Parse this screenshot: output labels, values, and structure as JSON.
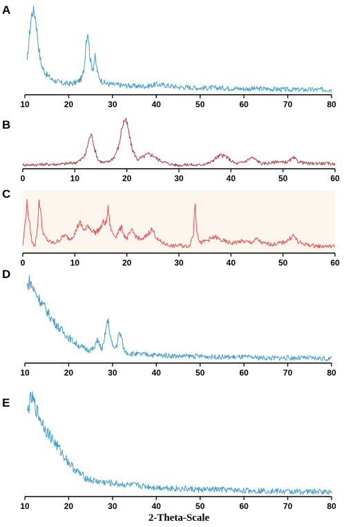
{
  "figure": {
    "xlabel": "2-Theta-Scale"
  },
  "chart_data": [
    {
      "panel": "A",
      "type": "line",
      "color": "#3a9bd0",
      "background": "#ffffff",
      "xlim": [
        10,
        80
      ],
      "xticks": [
        10,
        20,
        30,
        40,
        50,
        60,
        70,
        80
      ],
      "ylabel": "",
      "y_axis_visible": false,
      "series": [
        {
          "x": [
            10.5,
            11,
            11.5,
            12,
            12.5,
            13,
            13.5,
            14,
            15,
            16,
            17,
            18,
            19,
            20,
            21,
            22,
            23,
            23.5,
            24,
            24.4,
            24.8,
            25.2,
            25.6,
            26,
            26.4,
            26.8,
            27.5,
            28.5,
            30,
            32,
            35,
            38,
            40,
            42,
            45,
            50,
            55,
            60,
            65,
            70,
            75,
            80
          ],
          "y": [
            0.35,
            0.65,
            0.9,
            0.97,
            0.85,
            0.6,
            0.4,
            0.3,
            0.22,
            0.17,
            0.15,
            0.13,
            0.12,
            0.12,
            0.12,
            0.14,
            0.18,
            0.28,
            0.62,
            0.72,
            0.45,
            0.32,
            0.3,
            0.42,
            0.3,
            0.2,
            0.15,
            0.12,
            0.11,
            0.1,
            0.09,
            0.09,
            0.11,
            0.1,
            0.08,
            0.07,
            0.07,
            0.06,
            0.06,
            0.05,
            0.05,
            0.05
          ]
        }
      ]
    },
    {
      "panel": "B",
      "type": "line",
      "color": "#b5363f",
      "background": "#ffffff",
      "xlim": [
        0,
        60
      ],
      "xticks": [
        0,
        10,
        20,
        30,
        40,
        50,
        60
      ],
      "ylabel": "",
      "y_axis_visible": false,
      "series": [
        {
          "x": [
            0,
            2,
            4,
            6,
            8,
            10,
            11,
            12,
            12.5,
            13,
            13.4,
            13.8,
            14.5,
            15.5,
            16.5,
            17.5,
            18.5,
            19,
            19.5,
            20,
            20.5,
            21,
            22,
            23,
            24,
            25,
            26,
            28,
            30,
            32,
            33,
            34,
            36,
            37,
            38,
            39,
            40,
            41,
            42,
            43,
            44,
            45,
            46,
            48,
            49,
            50,
            51,
            52,
            53,
            55,
            57,
            60
          ],
          "y": [
            0.06,
            0.06,
            0.07,
            0.07,
            0.08,
            0.1,
            0.14,
            0.24,
            0.45,
            0.62,
            0.58,
            0.35,
            0.15,
            0.1,
            0.12,
            0.2,
            0.42,
            0.75,
            0.9,
            0.85,
            0.6,
            0.36,
            0.16,
            0.2,
            0.26,
            0.24,
            0.16,
            0.08,
            0.05,
            0.07,
            0.05,
            0.06,
            0.1,
            0.18,
            0.24,
            0.22,
            0.14,
            0.08,
            0.1,
            0.14,
            0.2,
            0.14,
            0.08,
            0.1,
            0.13,
            0.1,
            0.12,
            0.19,
            0.12,
            0.08,
            0.09,
            0.08
          ]
        }
      ]
    },
    {
      "panel": "C",
      "type": "line",
      "color": "#ef4a4a",
      "background": "#fdf6ee",
      "xlim": [
        0,
        60
      ],
      "xticks": [
        0,
        10,
        20,
        30,
        40,
        50,
        60
      ],
      "ylabel": "",
      "y_axis_visible": false,
      "series": [
        {
          "x": [
            0,
            0.3,
            0.8,
            1.3,
            1.8,
            2.3,
            2.8,
            3.1,
            3.4,
            3.7,
            4.2,
            5,
            6,
            7,
            8,
            9,
            10,
            10.5,
            11,
            11.5,
            12,
            12.5,
            13,
            14,
            15,
            15.5,
            16,
            16.4,
            16.8,
            17.2,
            17.8,
            18.5,
            19,
            19.5,
            20,
            20.5,
            21,
            22,
            23,
            24,
            24.8,
            25.2,
            26,
            27,
            28,
            29,
            30,
            31,
            32,
            32.8,
            33.1,
            33.4,
            34,
            35,
            36,
            37,
            38,
            40,
            42,
            44,
            45,
            46,
            48,
            50,
            51,
            52,
            53,
            55,
            57,
            60
          ],
          "y": [
            0.12,
            0.35,
            0.8,
            0.45,
            0.15,
            0.12,
            0.35,
            0.85,
            0.72,
            0.4,
            0.25,
            0.18,
            0.15,
            0.2,
            0.28,
            0.22,
            0.3,
            0.42,
            0.48,
            0.4,
            0.35,
            0.45,
            0.38,
            0.32,
            0.4,
            0.5,
            0.46,
            0.72,
            0.42,
            0.32,
            0.26,
            0.36,
            0.4,
            0.28,
            0.22,
            0.3,
            0.35,
            0.24,
            0.2,
            0.3,
            0.38,
            0.32,
            0.2,
            0.15,
            0.12,
            0.1,
            0.12,
            0.1,
            0.11,
            0.3,
            0.86,
            0.4,
            0.15,
            0.18,
            0.22,
            0.25,
            0.2,
            0.15,
            0.18,
            0.16,
            0.22,
            0.15,
            0.13,
            0.16,
            0.2,
            0.28,
            0.16,
            0.12,
            0.1,
            0.1
          ]
        }
      ]
    },
    {
      "panel": "D",
      "type": "line",
      "color": "#3a9bd0",
      "background": "#ffffff",
      "xlim": [
        10,
        80
      ],
      "xticks": [
        10,
        20,
        30,
        40,
        50,
        60,
        70,
        80
      ],
      "ylabel": "",
      "y_axis_visible": false,
      "series": [
        {
          "x": [
            10.5,
            11,
            11.5,
            12,
            13,
            14,
            15,
            16,
            17,
            18,
            19,
            20,
            21,
            22,
            23,
            24,
            25,
            26,
            26.5,
            27,
            27.5,
            28,
            28.5,
            29,
            29.5,
            30,
            30.5,
            31,
            31.5,
            32,
            32.5,
            33,
            34,
            36,
            38,
            40,
            42,
            45,
            50,
            55,
            60,
            65,
            70,
            75,
            80
          ],
          "y": [
            0.85,
            0.92,
            0.88,
            0.82,
            0.74,
            0.66,
            0.58,
            0.5,
            0.44,
            0.38,
            0.33,
            0.28,
            0.24,
            0.2,
            0.17,
            0.15,
            0.14,
            0.16,
            0.28,
            0.2,
            0.15,
            0.2,
            0.38,
            0.48,
            0.3,
            0.18,
            0.16,
            0.2,
            0.33,
            0.3,
            0.16,
            0.12,
            0.1,
            0.09,
            0.09,
            0.08,
            0.08,
            0.07,
            0.07,
            0.06,
            0.06,
            0.05,
            0.05,
            0.05,
            0.04
          ]
        }
      ]
    },
    {
      "panel": "E",
      "type": "line",
      "color": "#3a9bd0",
      "background": "#ffffff",
      "xlim": [
        10,
        80
      ],
      "xticks": [
        10,
        20,
        30,
        40,
        50,
        60,
        70,
        80
      ],
      "ylabel": "",
      "y_axis_visible": false,
      "series": [
        {
          "x": [
            10.5,
            11,
            11.5,
            12,
            12.5,
            13,
            14,
            15,
            16,
            17,
            18,
            19,
            20,
            21,
            22,
            23,
            24,
            25,
            26,
            28,
            30,
            32,
            35,
            38,
            40,
            42,
            45,
            50,
            55,
            60,
            65,
            70,
            75,
            80
          ],
          "y": [
            0.78,
            0.88,
            0.94,
            0.9,
            0.84,
            0.78,
            0.7,
            0.62,
            0.56,
            0.5,
            0.44,
            0.38,
            0.32,
            0.27,
            0.23,
            0.2,
            0.17,
            0.15,
            0.14,
            0.13,
            0.12,
            0.11,
            0.1,
            0.09,
            0.08,
            0.08,
            0.07,
            0.06,
            0.06,
            0.05,
            0.05,
            0.04,
            0.04,
            0.04
          ]
        }
      ]
    }
  ]
}
